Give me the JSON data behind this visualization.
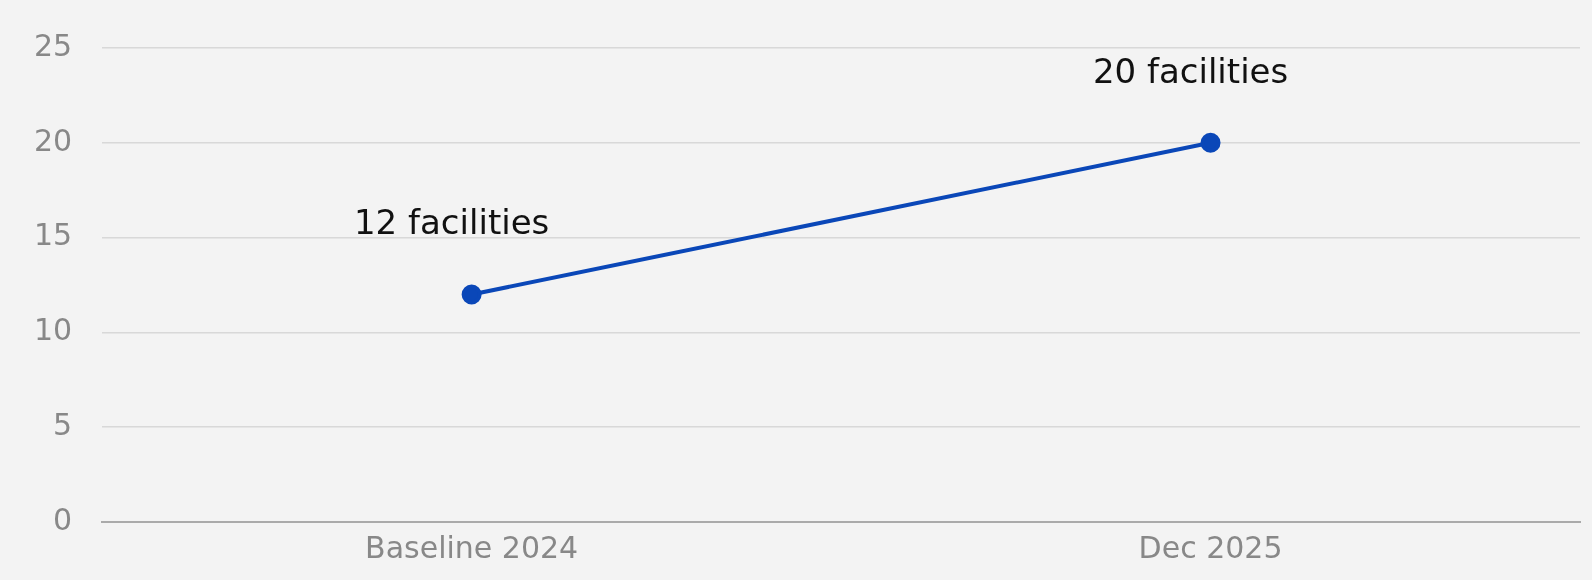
{
  "chart_data": {
    "type": "line",
    "categories": [
      "Baseline 2024",
      "Dec 2025"
    ],
    "series": [
      {
        "color": "#0a47b8",
        "values": [
          12,
          20
        ],
        "value_labels": [
          "12 facilities",
          "20 facilities"
        ]
      }
    ],
    "ylim": [
      0,
      25
    ],
    "yticks": [
      0,
      5,
      10,
      15,
      20,
      25
    ],
    "grid": "y",
    "legend": false,
    "marker": "circle",
    "line_style": "solid"
  }
}
